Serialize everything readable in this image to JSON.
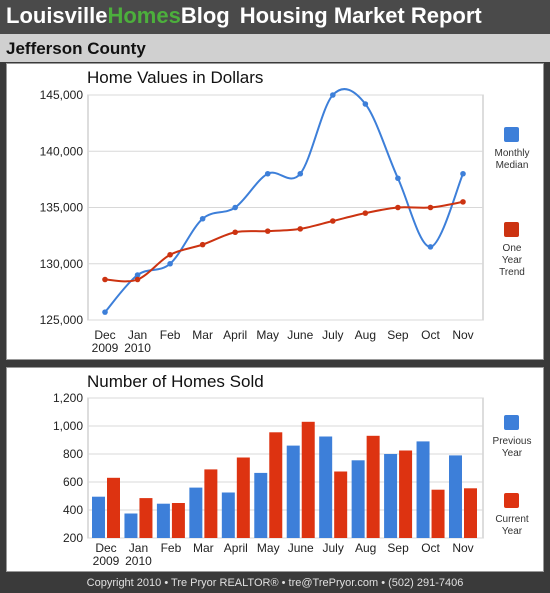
{
  "header": {
    "brand_part1": "Louisville",
    "brand_part2": "Homes",
    "brand_part3": "Blog",
    "report_title": "Housing Market Report"
  },
  "county": "Jefferson County",
  "footer": {
    "copyright": "Copyright 2010",
    "sep": " • ",
    "agent": "Tre Pryor REALTOR®",
    "email": "tre@TrePryor.com",
    "phone": "(502) 291-7406"
  },
  "chart_data": [
    {
      "type": "line",
      "title": "Home Values in Dollars",
      "xlabel": "",
      "ylabel": "",
      "categories": [
        "Dec\n2009",
        "Jan\n2010",
        "Feb",
        "Mar",
        "April",
        "May",
        "June",
        "July",
        "Aug",
        "Sep",
        "Oct",
        "Nov"
      ],
      "ylim": [
        125000,
        145000
      ],
      "yticks": [
        "125,000",
        "130,000",
        "135,000",
        "140,000",
        "145,000"
      ],
      "grid": true,
      "legend_position": "right",
      "series": [
        {
          "name": "Monthly Median",
          "color": "#3d7fd9",
          "values": [
            125700,
            129000,
            130000,
            134000,
            135000,
            138000,
            138000,
            145000,
            144200,
            137600,
            131500,
            138000
          ]
        },
        {
          "name": "One Year Trend",
          "color": "#cc3311",
          "values": [
            128600,
            128600,
            130800,
            131700,
            132800,
            132900,
            133100,
            133800,
            134500,
            135000,
            135000,
            135500
          ]
        }
      ]
    },
    {
      "type": "bar",
      "title": "Number of Homes Sold",
      "xlabel": "",
      "ylabel": "",
      "categories": [
        "Dec\n2009",
        "Jan\n2010",
        "Feb",
        "Mar",
        "April",
        "May",
        "June",
        "July",
        "Aug",
        "Sep",
        "Oct",
        "Nov"
      ],
      "ylim": [
        200,
        1200
      ],
      "yticks": [
        "200",
        "400",
        "600",
        "800",
        "1,000",
        "1,200"
      ],
      "grid": true,
      "legend_position": "right",
      "series": [
        {
          "name": "Previous Year",
          "color": "#3d7fd9",
          "values": [
            495,
            375,
            445,
            560,
            525,
            665,
            860,
            925,
            755,
            800,
            890,
            790
          ]
        },
        {
          "name": "Current Year",
          "color": "#dd3311",
          "values": [
            630,
            485,
            450,
            690,
            775,
            955,
            1030,
            675,
            930,
            825,
            545,
            555
          ]
        }
      ]
    }
  ]
}
